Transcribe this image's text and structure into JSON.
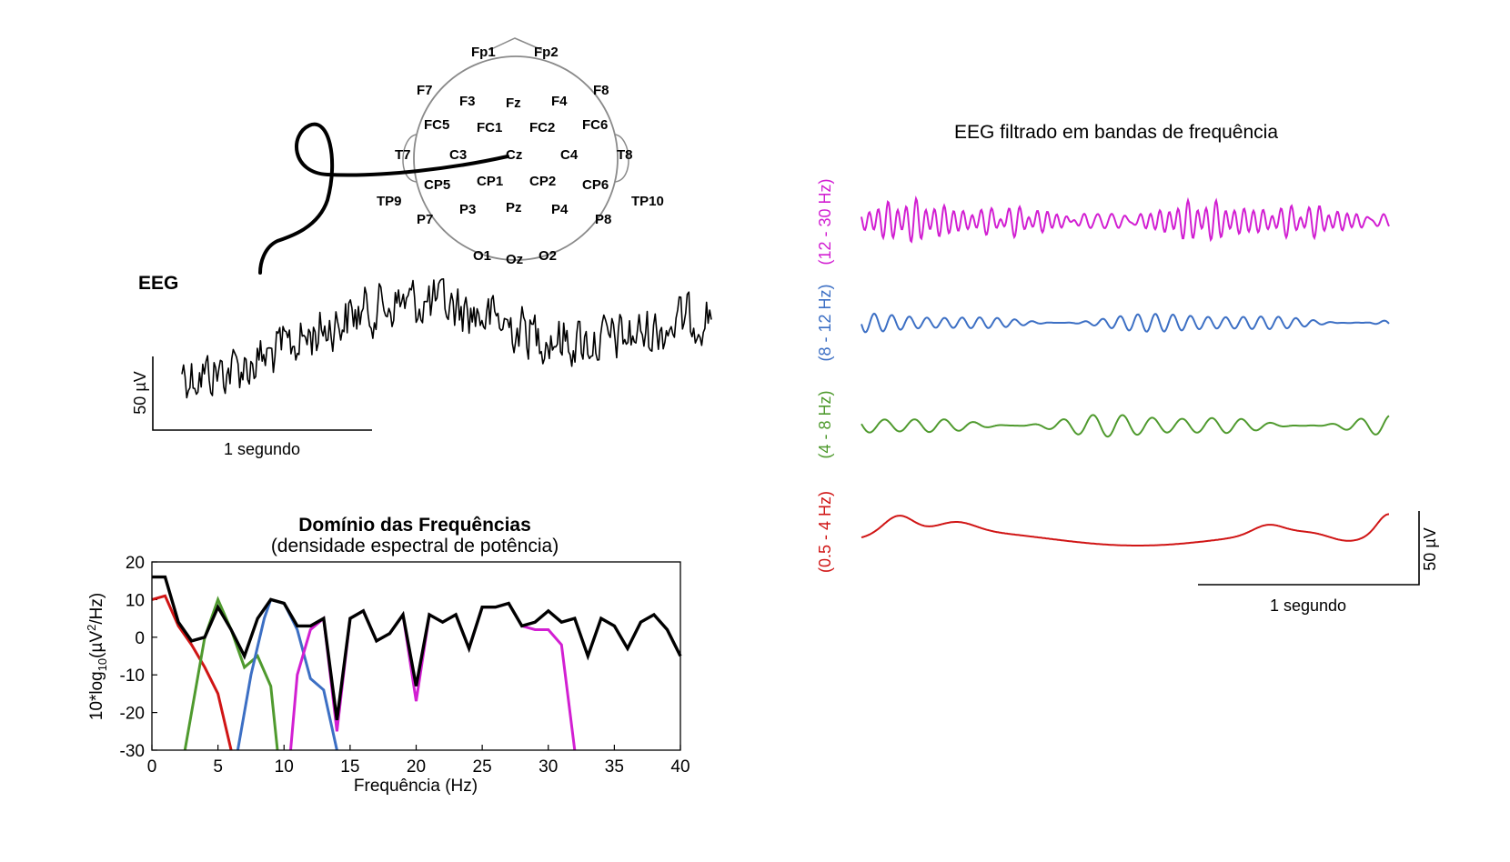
{
  "electrodes": [
    "Fp1",
    "Fp2",
    "F7",
    "F3",
    "Fz",
    "F4",
    "F8",
    "FC5",
    "FC1",
    "FC2",
    "FC6",
    "T7",
    "C3",
    "Cz",
    "C4",
    "T8",
    "CP5",
    "CP1",
    "CP2",
    "CP6",
    "TP9",
    "P3",
    "Pz",
    "P4",
    "TP10",
    "P7",
    "P8",
    "O1",
    "Oz",
    "O2"
  ],
  "raw_eeg": {
    "label": "EEG",
    "scale_label": "50 µV",
    "time_label": "1 segundo"
  },
  "filtered": {
    "title": "EEG filtrado em bandas de frequência",
    "scale_label": "50 µV",
    "time_label": "1 segundo",
    "bands": [
      {
        "label": "(12 - 30 Hz)",
        "color": "#d21fd2"
      },
      {
        "label": "(8 - 12 Hz)",
        "color": "#3c6fc4"
      },
      {
        "label": "(4 - 8 Hz)",
        "color": "#4f9a2e"
      },
      {
        "label": "(0.5 - 4 Hz)",
        "color": "#d01515"
      }
    ]
  },
  "chart_data": {
    "type": "line",
    "title": "Domínio das Frequências",
    "subtitle": "(densidade espectral de potência)",
    "xlabel": "Frequência (Hz)",
    "ylabel": "10*log10(µV²/Hz)",
    "xlim": [
      0,
      40
    ],
    "ylim": [
      -30,
      20
    ],
    "xticks": [
      0,
      5,
      10,
      15,
      20,
      25,
      30,
      35,
      40
    ],
    "yticks": [
      20,
      10,
      0,
      -10,
      -20,
      -30
    ],
    "series": [
      {
        "color": "#000000",
        "x": [
          0,
          1,
          2,
          3,
          4,
          5,
          6,
          7,
          8,
          9,
          10,
          11,
          12,
          13,
          14,
          15,
          16,
          17,
          18,
          19,
          20,
          21,
          22,
          23,
          24,
          25,
          26,
          27,
          28,
          29,
          30,
          31,
          32,
          33,
          34,
          35,
          36,
          37,
          38,
          39,
          40
        ],
        "y": [
          16,
          16,
          4,
          -1,
          0,
          8,
          2,
          -5,
          5,
          10,
          9,
          3,
          3,
          5,
          -22,
          5,
          7,
          -1,
          1,
          6,
          -13,
          6,
          4,
          6,
          -3,
          8,
          8,
          9,
          3,
          4,
          7,
          4,
          5,
          -5,
          5,
          3,
          -3,
          4,
          6,
          2,
          -5
        ]
      },
      {
        "color": "#d01515",
        "x": [
          0,
          1,
          2,
          3,
          4,
          5,
          6
        ],
        "y": [
          10,
          11,
          3,
          -2,
          -8,
          -15,
          -30
        ]
      },
      {
        "color": "#4f9a2e",
        "x": [
          2.5,
          4,
          5,
          6,
          7,
          8,
          9,
          9.5
        ],
        "y": [
          -30,
          0,
          10,
          2,
          -8,
          -5,
          -13,
          -30
        ]
      },
      {
        "color": "#3c6fc4",
        "x": [
          6.5,
          7.5,
          8.5,
          9,
          10,
          11,
          12,
          13,
          14
        ],
        "y": [
          -30,
          -10,
          5,
          10,
          9,
          2,
          -11,
          -14,
          -30
        ]
      },
      {
        "color": "#d21fd2",
        "x": [
          10.5,
          11,
          12,
          13,
          14,
          15,
          16,
          17,
          18,
          19,
          20,
          21,
          22,
          23,
          24,
          25,
          26,
          27,
          28,
          29,
          30,
          31,
          32
        ],
        "y": [
          -30,
          -10,
          2,
          5,
          -25,
          5,
          7,
          -1,
          1,
          6,
          -17,
          6,
          4,
          6,
          -3,
          8,
          8,
          9,
          3,
          2,
          2,
          -2,
          -30
        ]
      }
    ]
  }
}
